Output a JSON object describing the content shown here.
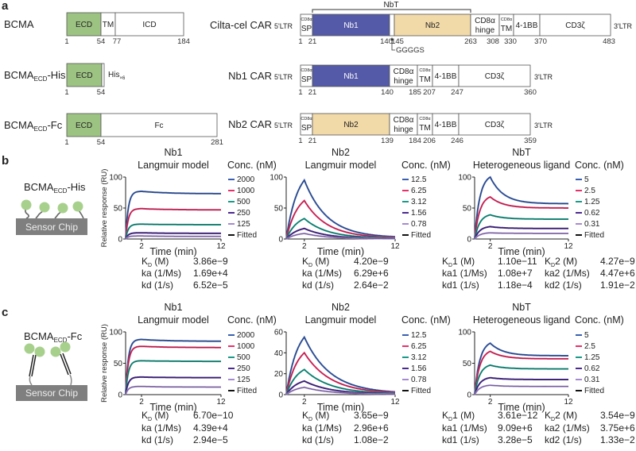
{
  "panel_labels": [
    "a",
    "b",
    "c"
  ],
  "panel_a": {
    "proteins": [
      {
        "name": "BCMA",
        "sub": "",
        "suffix": "",
        "segments": [
          "ECD",
          "TM",
          "ICD"
        ],
        "numbers": [
          "1",
          "54",
          "77",
          "184"
        ]
      },
      {
        "name": "BCMA",
        "sub": "ECD",
        "suffix": "-His",
        "segments": [
          "ECD",
          ""
        ],
        "tag": "His",
        "tag_sub": "×6",
        "numbers": [
          "1",
          "54"
        ]
      },
      {
        "name": "BCMA",
        "sub": "ECD",
        "suffix": "-Fc",
        "segments": [
          "ECD",
          "Fc"
        ],
        "numbers": [
          "1",
          "54",
          "281"
        ]
      }
    ],
    "cars": [
      {
        "name": "Cilta-cel CAR",
        "ltr5": "5'LTR",
        "ltr3": "3'LTR",
        "segments": [
          {
            "top": "CD8α",
            "label": "SP"
          },
          {
            "label": "Nb1"
          },
          {
            "label": ""
          },
          {
            "label": "Nb2"
          },
          {
            "label": "CD8α",
            "label2": "hinge"
          },
          {
            "top": "CD8α",
            "label": "TM"
          },
          {
            "label": "4-1BB"
          },
          {
            "label": "CD3ζ"
          }
        ],
        "numbers": [
          "1",
          "21",
          "140",
          "145",
          "263",
          "308",
          "330",
          "370",
          "483"
        ],
        "bracket": "NbT",
        "linker": "GGGGS"
      },
      {
        "name": "Nb1 CAR",
        "ltr5": "5'LTR",
        "ltr3": "3'LTR",
        "segments": [
          {
            "top": "CD8α",
            "label": "SP"
          },
          {
            "label": "Nb1"
          },
          {
            "label": "CD8α",
            "label2": "hinge"
          },
          {
            "top": "CD8α",
            "label": "TM"
          },
          {
            "label": "4-1BB"
          },
          {
            "label": "CD3ζ"
          }
        ],
        "numbers": [
          "1",
          "21",
          "140",
          "185",
          "207",
          "247",
          "360"
        ]
      },
      {
        "name": "Nb2 CAR",
        "ltr5": "5'LTR",
        "ltr3": "3'LTR",
        "segments": [
          {
            "top": "CD8α",
            "label": "SP"
          },
          {
            "label": "Nb2"
          },
          {
            "label": "CD8α",
            "label2": "hinge"
          },
          {
            "top": "CD8α",
            "label": "TM"
          },
          {
            "label": "4-1BB"
          },
          {
            "label": "CD3ζ"
          }
        ],
        "numbers": [
          "1",
          "21",
          "139",
          "184",
          "206",
          "246",
          "359"
        ]
      }
    ],
    "colors": {
      "ECD": "#9dc383",
      "Nb1": "#5459a8",
      "Nb2": "#f2d9a8"
    }
  },
  "panel_b": {
    "ligand": {
      "name": "BCMA",
      "sub": "ECD",
      "suffix": "-His"
    },
    "chip": "Sensor Chip"
  },
  "panel_c": {
    "ligand": {
      "name": "BCMA",
      "sub": "ECD",
      "suffix": "-Fc"
    },
    "chip": "Sensor Chip"
  },
  "series_colors": [
    "#3a5fb0",
    "#e8306a",
    "#1a9a8a",
    "#4b2a90",
    "#a68ad0"
  ],
  "chart_data": [
    {
      "type": "line",
      "panel": "b",
      "title": "Nb1",
      "subtitle": "Langmuir model",
      "xlabel": "Time (min)",
      "ylabel": "Relative response (RU)",
      "legend_title": "Conc. (nM)",
      "fitted_label": "Fitted",
      "xlim": [
        0,
        12
      ],
      "ylim": [
        0,
        100
      ],
      "x_ticks": [
        "2",
        "12"
      ],
      "y_ticks": [
        "0",
        "50",
        "100"
      ],
      "assoc_end_min": 2,
      "assoc_rate_per_min": 3,
      "dissoc_rate_per_min": 0.3,
      "series": [
        {
          "name": "2000",
          "peak": 77,
          "end": 73
        },
        {
          "name": "1000",
          "peak": 49,
          "end": 47
        },
        {
          "name": "500",
          "peak": 24,
          "end": 23
        },
        {
          "name": "250",
          "peak": 10,
          "end": 9
        },
        {
          "name": "125",
          "peak": 5,
          "end": 4
        }
      ],
      "params": [
        {
          "k": "K",
          "sub": "D",
          "rest": " (M)",
          "value": "3.86e−9"
        },
        {
          "k": "ka",
          "sub": "",
          "rest": " (1/Ms)",
          "value": "1.69e+4"
        },
        {
          "k": "kd",
          "sub": "",
          "rest": " (1/s)",
          "value": "6.52e−5"
        }
      ]
    },
    {
      "type": "line",
      "panel": "b",
      "title": "Nb2",
      "subtitle": "Langmuir model",
      "xlabel": "Time (min)",
      "ylabel": "",
      "legend_title": "Conc. (nM)",
      "fitted_label": "Fitted",
      "xlim": [
        0,
        12
      ],
      "ylim": [
        0,
        100
      ],
      "x_ticks": [
        "2",
        "12"
      ],
      "y_ticks": [
        "0",
        "50",
        "100"
      ],
      "assoc_end_min": 2,
      "assoc_rate_per_min": 0.8,
      "dissoc_rate_per_min": 0.4,
      "series": [
        {
          "name": "12.5",
          "peak": 95,
          "end": 2
        },
        {
          "name": "6.25",
          "peak": 62,
          "end": 1.5
        },
        {
          "name": "3.12",
          "peak": 33,
          "end": 1
        },
        {
          "name": "1.56",
          "peak": 17,
          "end": 0.5
        },
        {
          "name": "0.78",
          "peak": 9,
          "end": 0.3
        }
      ],
      "params": [
        {
          "k": "K",
          "sub": "D",
          "rest": " (M)",
          "value": "4.20e−9"
        },
        {
          "k": "ka",
          "sub": "",
          "rest": " (1/Ms)",
          "value": "6.29e+6"
        },
        {
          "k": "kd",
          "sub": "",
          "rest": " (1/s)",
          "value": "2.64e−2"
        }
      ]
    },
    {
      "type": "line",
      "panel": "b",
      "title": "NbT",
      "subtitle": "Heterogeneous ligand",
      "xlabel": "Time (min)",
      "ylabel": "",
      "legend_title": "Conc. (nM)",
      "fitted_label": "Fitted",
      "xlim": [
        0,
        12
      ],
      "ylim": [
        0,
        100
      ],
      "x_ticks": [
        "2",
        "12"
      ],
      "y_ticks": [
        "0",
        "50",
        "100"
      ],
      "assoc_end_min": 2,
      "assoc_rate_per_min": 1.5,
      "dissoc_rate_per_min": 0.6,
      "series": [
        {
          "name": "5",
          "peak": 100,
          "end": 57
        },
        {
          "name": "2.5",
          "peak": 68,
          "end": 50
        },
        {
          "name": "1.25",
          "peak": 39,
          "end": 32
        },
        {
          "name": "0.62",
          "peak": 20,
          "end": 17
        },
        {
          "name": "0.31",
          "peak": 10,
          "end": 9
        }
      ],
      "params": [
        {
          "k": "K",
          "sub": "D",
          "rest": "1 (M)",
          "value": "1.10e−11",
          "k2": "K",
          "sub2": "D",
          "rest2": "2 (M)",
          "value2": "4.27e−9"
        },
        {
          "k": "ka1",
          "sub": "",
          "rest": " (1/Ms)",
          "value": "1.08e+7",
          "k2": "ka2",
          "sub2": "",
          "rest2": " (1/Ms)",
          "value2": "4.47e+6"
        },
        {
          "k": "kd1",
          "sub": "",
          "rest": " (1/s)",
          "value": "1.18e−4",
          "k2": "kd2",
          "sub2": "",
          "rest2": " (1/s)",
          "value2": "1.91e−2"
        }
      ]
    },
    {
      "type": "line",
      "panel": "c",
      "title": "Nb1",
      "subtitle": "Langmuir model",
      "xlabel": "Time (min)",
      "ylabel": "Relative response (RU)",
      "legend_title": "Conc. (nM)",
      "fitted_label": "Fitted",
      "xlim": [
        0,
        12
      ],
      "ylim": [
        0,
        100
      ],
      "x_ticks": [
        "2",
        "12"
      ],
      "y_ticks": [
        "0",
        "50",
        "100"
      ],
      "assoc_end_min": 2,
      "assoc_rate_per_min": 3,
      "dissoc_rate_per_min": 0.3,
      "series": [
        {
          "name": "2000",
          "peak": 88,
          "end": 85
        },
        {
          "name": "1000",
          "peak": 77,
          "end": 75
        },
        {
          "name": "500",
          "peak": 54,
          "end": 53
        },
        {
          "name": "250",
          "peak": 28,
          "end": 27
        },
        {
          "name": "125",
          "peak": 13,
          "end": 12
        }
      ],
      "params": [
        {
          "k": "K",
          "sub": "D",
          "rest": " (M)",
          "value": "6.70e−10"
        },
        {
          "k": "ka",
          "sub": "",
          "rest": " (1/Ms)",
          "value": "4.39e+4"
        },
        {
          "k": "kd",
          "sub": "",
          "rest": " (1/s)",
          "value": "2.94e−5"
        }
      ]
    },
    {
      "type": "line",
      "panel": "c",
      "title": "Nb2",
      "subtitle": "Langmuir model",
      "xlabel": "Time (min)",
      "ylabel": "",
      "legend_title": "Conc. (nM)",
      "fitted_label": "Fitted",
      "xlim": [
        0,
        12
      ],
      "ylim": [
        0,
        60
      ],
      "x_ticks": [
        "2",
        "12"
      ],
      "y_ticks": [
        "0",
        "20",
        "40",
        "60"
      ],
      "assoc_end_min": 2,
      "assoc_rate_per_min": 0.8,
      "dissoc_rate_per_min": 0.35,
      "series": [
        {
          "name": "12.5",
          "peak": 55,
          "end": 1
        },
        {
          "name": "6.25",
          "peak": 40,
          "end": 0.8
        },
        {
          "name": "3.12",
          "peak": 24,
          "end": 0.5
        },
        {
          "name": "1.56",
          "peak": 13,
          "end": 0.3
        },
        {
          "name": "0.78",
          "peak": 7,
          "end": 0.2
        }
      ],
      "params": [
        {
          "k": "K",
          "sub": "D",
          "rest": " (M)",
          "value": "3.65e−9"
        },
        {
          "k": "ka",
          "sub": "",
          "rest": " (1/Ms)",
          "value": "2.96e+6"
        },
        {
          "k": "kd",
          "sub": "",
          "rest": " (1/s)",
          "value": "1.08e−2"
        }
      ]
    },
    {
      "type": "line",
      "panel": "c",
      "title": "NbT",
      "subtitle": "Heterogeneous ligand",
      "xlabel": "Time (min)",
      "ylabel": "",
      "legend_title": "Conc. (nM)",
      "fitted_label": "Fitted",
      "xlim": [
        0,
        12
      ],
      "ylim": [
        0,
        100
      ],
      "x_ticks": [
        "2",
        "12"
      ],
      "y_ticks": [
        "0",
        "50",
        "100"
      ],
      "assoc_end_min": 2,
      "assoc_rate_per_min": 1.5,
      "dissoc_rate_per_min": 0.6,
      "series": [
        {
          "name": "5",
          "peak": 82,
          "end": 62
        },
        {
          "name": "2.5",
          "peak": 69,
          "end": 57
        },
        {
          "name": "1.25",
          "peak": 47,
          "end": 41
        },
        {
          "name": "0.62",
          "peak": 27,
          "end": 24
        },
        {
          "name": "0.31",
          "peak": 15,
          "end": 13
        }
      ],
      "params": [
        {
          "k": "K",
          "sub": "D",
          "rest": "1 (M)",
          "value": "3.61e−12",
          "k2": "K",
          "sub2": "D",
          "rest2": "2 (M)",
          "value2": "3.54e−9"
        },
        {
          "k": "ka1",
          "sub": "",
          "rest": " (1/Ms)",
          "value": "9.09e+6",
          "k2": "ka2",
          "sub2": "",
          "rest2": " (1/Ms)",
          "value2": "3.75e+6"
        },
        {
          "k": "kd1",
          "sub": "",
          "rest": " (1/s)",
          "value": "3.28e−5",
          "k2": "kd2",
          "sub2": "",
          "rest2": " (1/s)",
          "value2": "1.33e−2"
        }
      ]
    }
  ]
}
